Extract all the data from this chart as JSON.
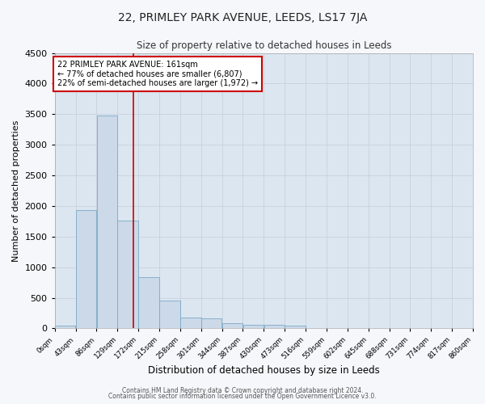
{
  "title": "22, PRIMLEY PARK AVENUE, LEEDS, LS17 7JA",
  "subtitle": "Size of property relative to detached houses in Leeds",
  "xlabel": "Distribution of detached houses by size in Leeds",
  "ylabel": "Number of detached properties",
  "bar_color": "#ccd9e8",
  "bar_edge_color": "#7aaac8",
  "background_color": "#dce6f0",
  "fig_background_color": "#f5f7fa",
  "grid_color": "#c8d0dc",
  "vline_x": 161,
  "vline_color": "#cc0000",
  "annotation_text": "22 PRIMLEY PARK AVENUE: 161sqm\n← 77% of detached houses are smaller (6,807)\n22% of semi-detached houses are larger (1,972) →",
  "annotation_box_color": "white",
  "annotation_box_edge": "#cc0000",
  "bin_edges": [
    0,
    43,
    86,
    129,
    172,
    215,
    258,
    301,
    344,
    387,
    430,
    473,
    516,
    559,
    602,
    645,
    688,
    731,
    774,
    817,
    860
  ],
  "bar_heights": [
    50,
    1930,
    3480,
    1760,
    840,
    450,
    175,
    165,
    90,
    60,
    55,
    50,
    0,
    0,
    0,
    0,
    0,
    0,
    0,
    0
  ],
  "ylim": [
    0,
    4500
  ],
  "yticks": [
    0,
    500,
    1000,
    1500,
    2000,
    2500,
    3000,
    3500,
    4000,
    4500
  ],
  "xlim": [
    0,
    860
  ],
  "footer_line1": "Contains HM Land Registry data © Crown copyright and database right 2024.",
  "footer_line2": "Contains public sector information licensed under the Open Government Licence v3.0."
}
